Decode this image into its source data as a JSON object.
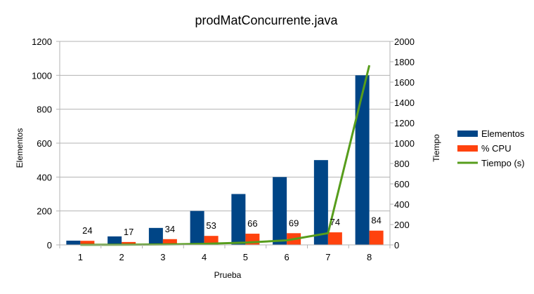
{
  "chart_data": {
    "type": "bar",
    "title": "prodMatConcurrente.java",
    "xlabel": "Prueba",
    "ylabel": "Elementos",
    "y2label": "Tiempo",
    "categories": [
      "1",
      "2",
      "3",
      "4",
      "5",
      "6",
      "7",
      "8"
    ],
    "ylim": [
      0,
      1200
    ],
    "y_ticks": [
      "0",
      "200",
      "400",
      "600",
      "800",
      "1000",
      "1200"
    ],
    "y2lim": [
      0,
      2000
    ],
    "y2_ticks": [
      "0",
      "200",
      "400",
      "600",
      "800",
      "1000",
      "1200",
      "1400",
      "1600",
      "1800",
      "2000"
    ],
    "grid": true,
    "legend_position": "right",
    "series": [
      {
        "name": "Elementos",
        "type": "bar",
        "axis": "left",
        "color": "#004586",
        "values": [
          25,
          50,
          100,
          200,
          300,
          400,
          500,
          1000
        ]
      },
      {
        "name": "% CPU",
        "type": "bar",
        "axis": "left",
        "color": "#ff420e",
        "values": [
          24,
          17,
          34,
          53,
          66,
          69,
          74,
          84
        ],
        "data_labels": [
          "24",
          "17",
          "34",
          "53",
          "66",
          "69",
          "74",
          "84"
        ]
      },
      {
        "name": "Tiempo (s)",
        "type": "line",
        "axis": "right",
        "color": "#579d1c",
        "values": [
          1,
          2,
          4,
          10,
          22,
          45,
          115,
          1765
        ]
      }
    ]
  }
}
